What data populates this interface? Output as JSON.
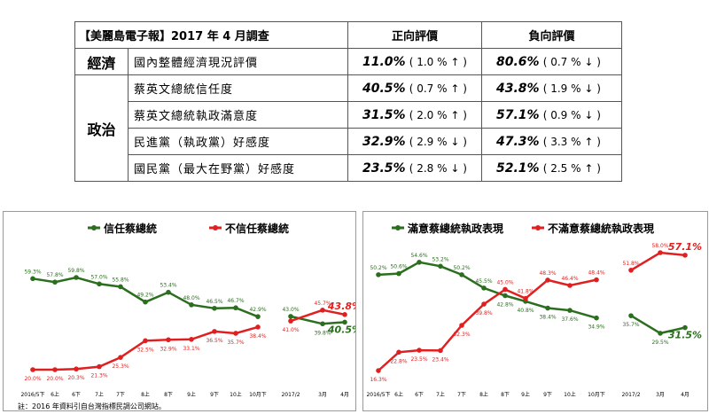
{
  "table": {
    "title": "【美麗島電子報】2017 年 4 月調查",
    "col_positive": "正向評價",
    "col_negative": "負向評價",
    "rows": [
      {
        "category": "經濟",
        "item": "國內整體經濟現況評價",
        "pos": "11.0%",
        "pos_chg": "( 1.0 % ↑ )",
        "neg": "80.6%",
        "neg_chg": "( 0.7 % ↓ )"
      },
      {
        "category": "政治",
        "item": "蔡英文總統信任度",
        "pos": "40.5%",
        "pos_chg": "( 0.7 % ↑ )",
        "neg": "43.8%",
        "neg_chg": "( 1.9 % ↓ )"
      },
      {
        "item": "蔡英文總統執政滿意度",
        "pos": "31.5%",
        "pos_chg": "( 2.0 % ↑ )",
        "neg": "57.1%",
        "neg_chg": "( 0.9 % ↓ )"
      },
      {
        "item": "民進黨（執政黨）好感度",
        "pos": "32.9%",
        "pos_chg": "( 2.9 % ↓ )",
        "neg": "47.3%",
        "neg_chg": "( 3.3 % ↑ )"
      },
      {
        "item": "國民黨（最大在野黨）好感度",
        "pos": "23.5%",
        "pos_chg": "( 2.8 % ↓ )",
        "neg": "52.1%",
        "neg_chg": "( 2.5 % ↑ )"
      }
    ]
  },
  "colors": {
    "green": "#2a6e1e",
    "red": "#e02020",
    "border": "#999999"
  },
  "footnote": "註：2016 年資料引自台灣指標民調公司網站。",
  "chart_data": [
    {
      "type": "line",
      "ylim": [
        0,
        70
      ],
      "categories": [
        "2016/5下",
        "6上",
        "6下",
        "7上",
        "7下",
        "8上",
        "8下",
        "9上",
        "9下",
        "10上",
        "10月下",
        "2017/2",
        "3月",
        "4月"
      ],
      "segments": [
        [
          0,
          10
        ],
        [
          11,
          13
        ]
      ],
      "series": [
        {
          "name": "信任蔡總統",
          "color": "#2a6e1e",
          "values": [
            59.3,
            57.8,
            59.8,
            57.0,
            55.8,
            49.2,
            53.4,
            48.0,
            46.5,
            46.7,
            42.9,
            43.0,
            39.8,
            40.5
          ],
          "labels": [
            "59.3%",
            "57.8%",
            "59.8%",
            "57.0%",
            "55.8%",
            "49.2%",
            "53.4%",
            "48.0%",
            "46.5%",
            "46.7%",
            "42.9%",
            "43.0%",
            "39.8%",
            "40.5%"
          ]
        },
        {
          "name": "不信任蔡總統",
          "color": "#e02020",
          "values": [
            20.0,
            20.0,
            20.3,
            21.3,
            25.3,
            32.5,
            32.9,
            33.1,
            36.5,
            35.7,
            38.4,
            41.0,
            45.7,
            43.8
          ],
          "labels": [
            "20.0%",
            "20.0%",
            "20.3%",
            "21.3%",
            "25.3%",
            "32.5%",
            "32.9%",
            "33.1%",
            "36.5%",
            "35.7%",
            "38.4%",
            "41.0%",
            "45.7%",
            "43.8%"
          ]
        }
      ]
    },
    {
      "type": "line",
      "ylim": [
        0,
        70
      ],
      "categories": [
        "2016/5下",
        "6上",
        "6下",
        "7上",
        "7下",
        "8上",
        "8下",
        "9上",
        "9下",
        "10上",
        "10月下",
        "2017/2",
        "3月",
        "4月"
      ],
      "segments": [
        [
          0,
          10
        ],
        [
          11,
          13
        ]
      ],
      "series": [
        {
          "name": "滿意蔡總統執政表現",
          "color": "#2a6e1e",
          "values": [
            50.2,
            50.6,
            54.6,
            53.2,
            50.2,
            45.5,
            42.8,
            40.8,
            38.4,
            37.6,
            34.9,
            35.7,
            29.5,
            31.5
          ],
          "labels": [
            "50.2%",
            "50.6%",
            "54.6%",
            "53.2%",
            "50.2%",
            "45.5%",
            "42.8%",
            "40.8%",
            "38.4%",
            "37.6%",
            "34.9%",
            "35.7%",
            "29.5%",
            "31.5%"
          ]
        },
        {
          "name": "不滿意蔡總統執政表現",
          "color": "#e02020",
          "values": [
            16.3,
            22.8,
            23.5,
            23.4,
            32.3,
            39.8,
            45.0,
            41.8,
            48.3,
            46.4,
            48.4,
            51.8,
            58.0,
            57.1
          ],
          "labels": [
            "16.3%",
            "22.8%",
            "23.5%",
            "23.4%",
            "32.3%",
            "39.8%",
            "45.0%",
            "41.8%",
            "48.3%",
            "46.4%",
            "48.4%",
            "51.8%",
            "58.0%",
            "57.1%"
          ]
        }
      ]
    }
  ]
}
